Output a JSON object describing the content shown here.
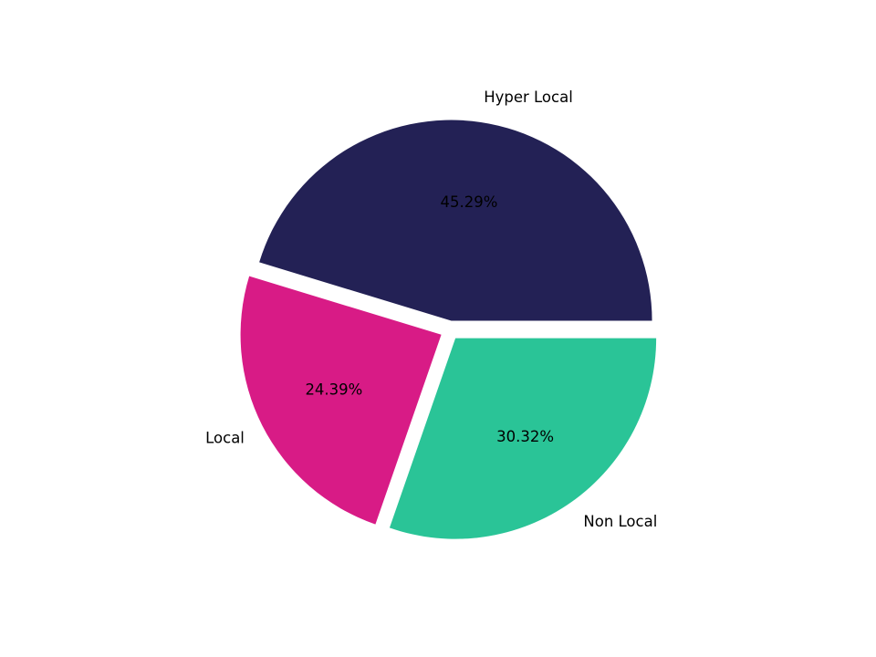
{
  "chart_data": {
    "type": "pie",
    "title": "",
    "slices": [
      {
        "label": "Hyper Local",
        "value": 45.29,
        "pct_label": "45.29%",
        "color": "#232155"
      },
      {
        "label": "Local",
        "value": 24.39,
        "pct_label": "24.39%",
        "color": "#D81B86"
      },
      {
        "label": "Non Local",
        "value": 30.32,
        "pct_label": "30.32%",
        "color": "#2AC497"
      }
    ],
    "start_angle_deg": 0,
    "direction": "counterclockwise",
    "explode": 0.048,
    "label_distance": 1.1,
    "pct_distance": 0.6,
    "legend": "none",
    "background_color": "#FFFFFF",
    "text_color": "#000000"
  }
}
